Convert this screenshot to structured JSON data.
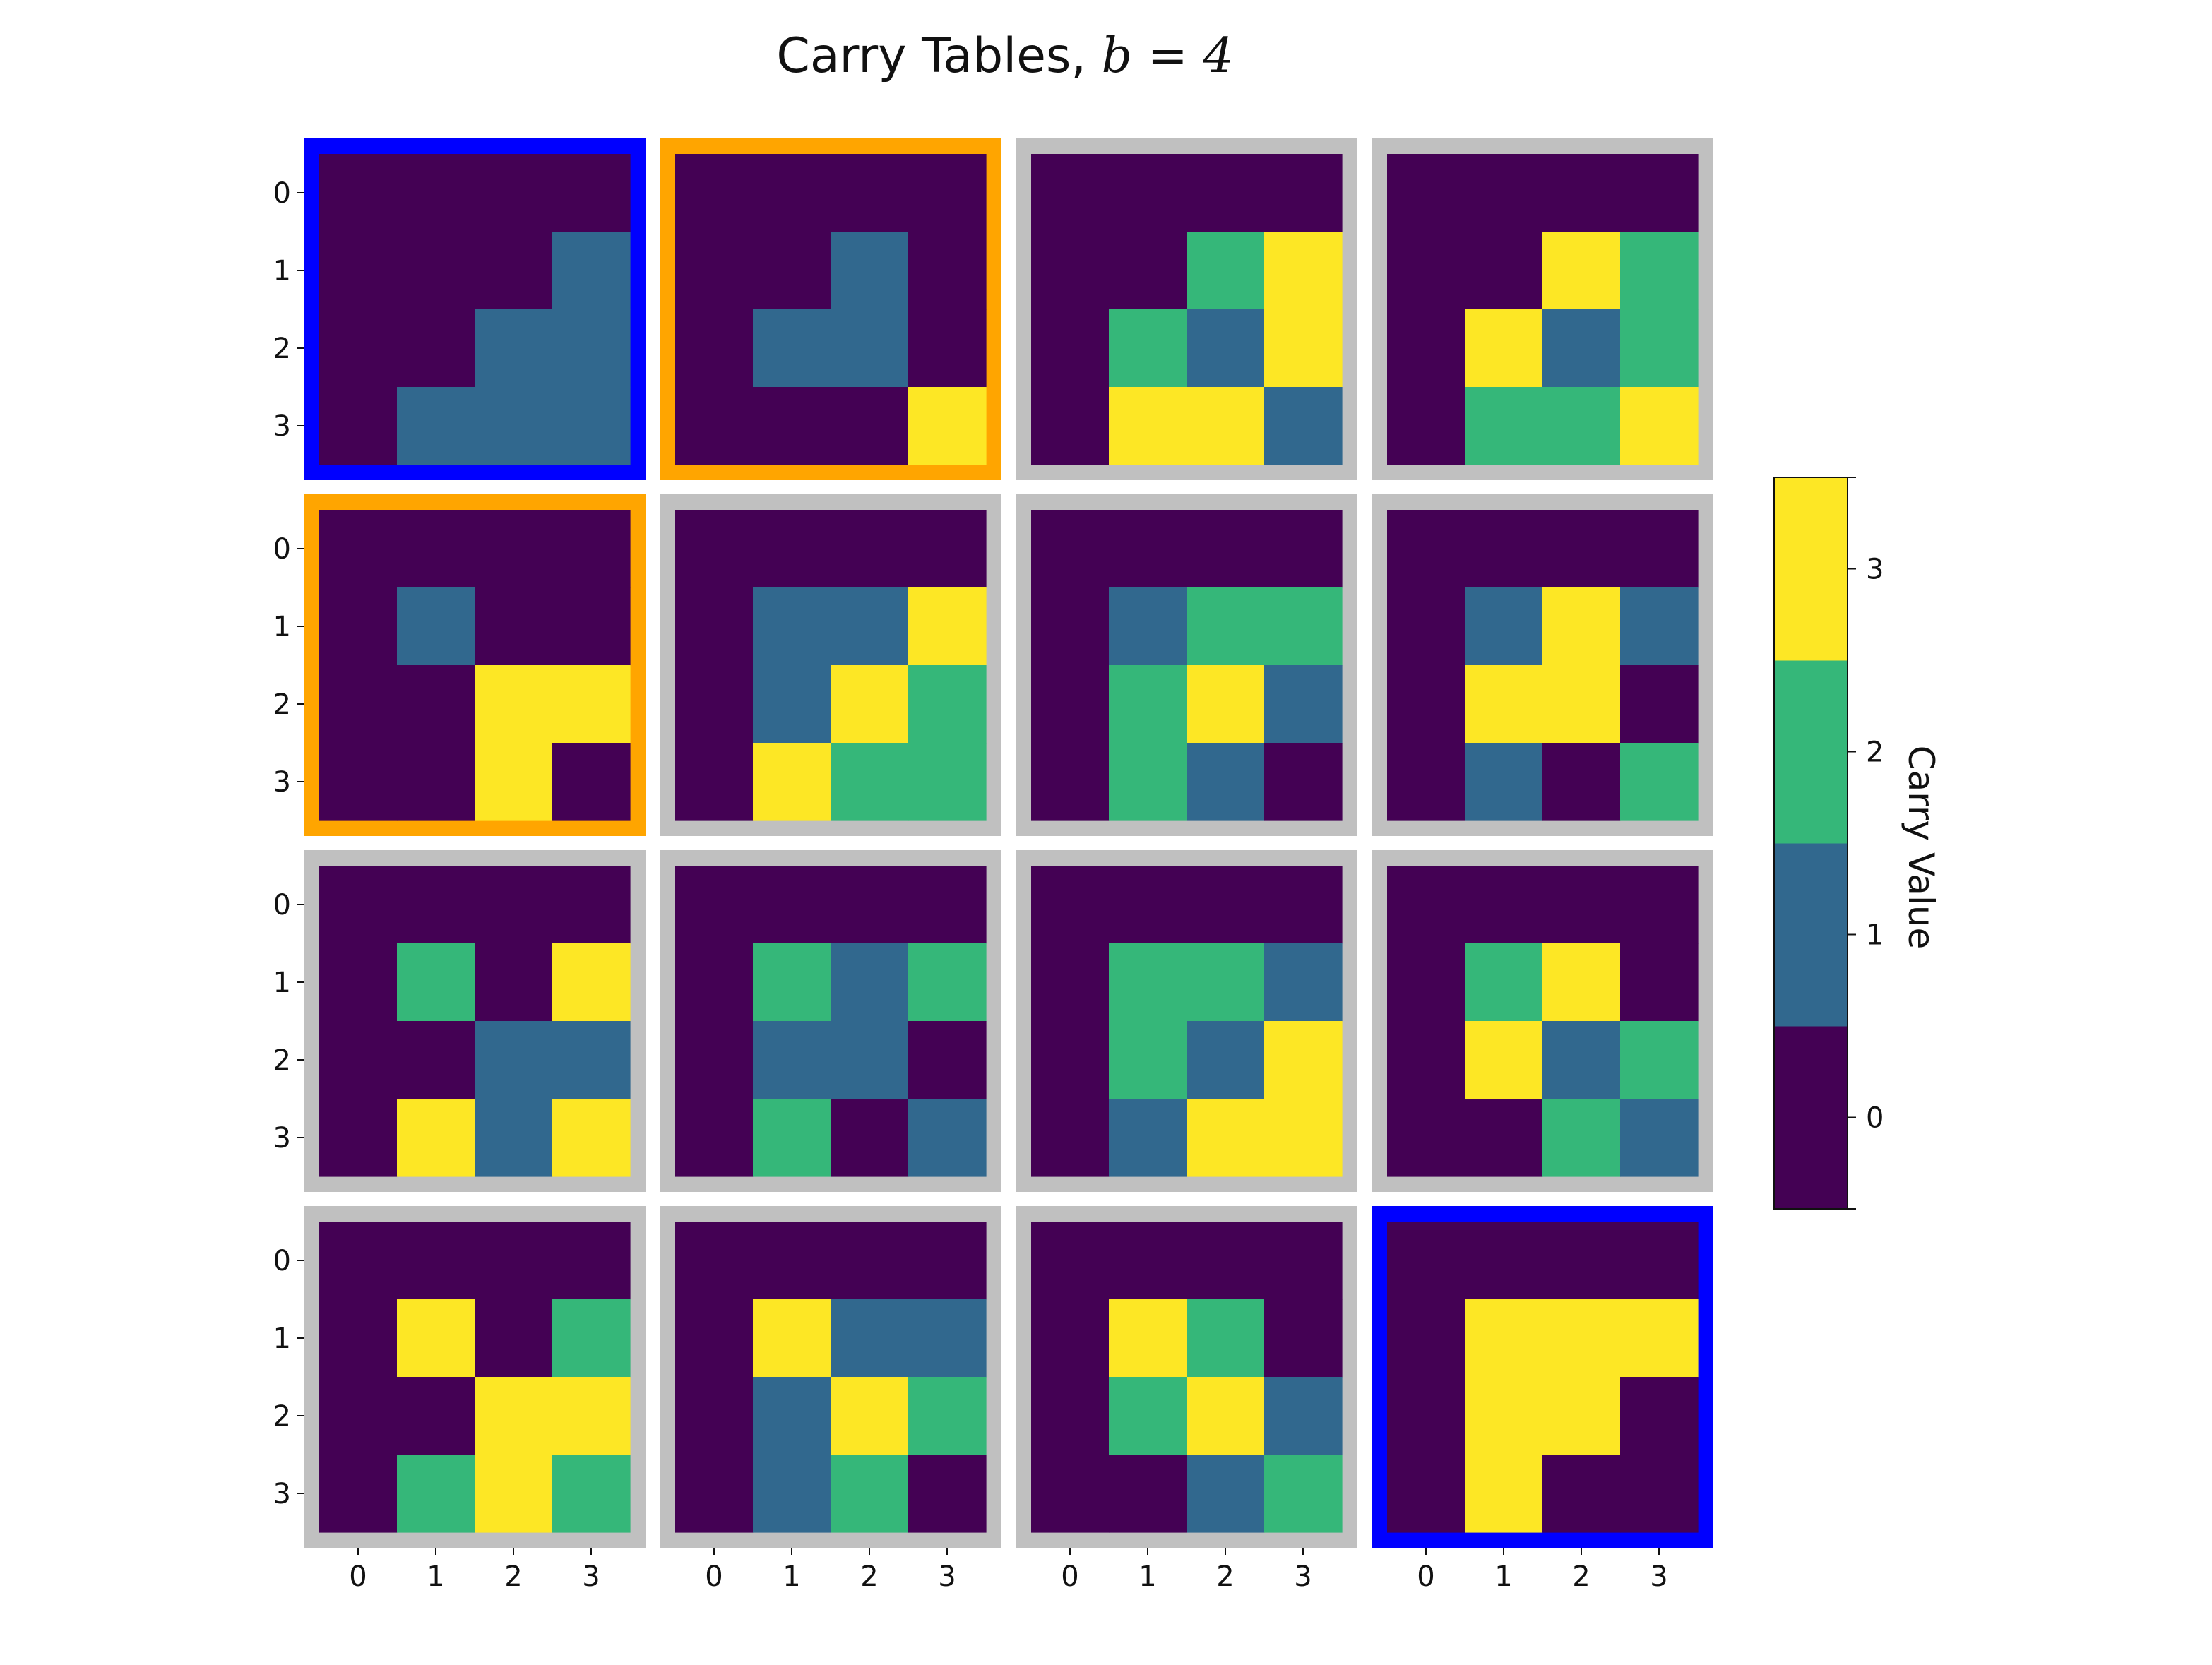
{
  "chart_data": {
    "type": "heatmap",
    "title_prefix": "Carry Tables, ",
    "title_math": "b = 4",
    "rows": 4,
    "cols": 4,
    "x_ticks": [
      "0",
      "1",
      "2",
      "3"
    ],
    "y_ticks": [
      "0",
      "1",
      "2",
      "3"
    ],
    "colorbar": {
      "label": "Carry Value",
      "ticks": [
        "0",
        "1",
        "2",
        "3"
      ],
      "colors": [
        "#440154",
        "#31688e",
        "#35b779",
        "#fde725"
      ]
    },
    "frame_colors": {
      "blue": "#0000ff",
      "orange": "#ffa500",
      "gray": "#c0c0c0"
    },
    "tables": [
      {
        "frame": "blue",
        "values": [
          [
            0,
            0,
            0,
            0
          ],
          [
            0,
            0,
            0,
            1
          ],
          [
            0,
            0,
            1,
            1
          ],
          [
            0,
            1,
            1,
            1
          ]
        ]
      },
      {
        "frame": "orange",
        "values": [
          [
            0,
            0,
            0,
            0
          ],
          [
            0,
            0,
            1,
            0
          ],
          [
            0,
            1,
            1,
            0
          ],
          [
            0,
            0,
            0,
            3
          ]
        ]
      },
      {
        "frame": "gray",
        "values": [
          [
            0,
            0,
            0,
            0
          ],
          [
            0,
            0,
            2,
            3
          ],
          [
            0,
            2,
            1,
            3
          ],
          [
            0,
            3,
            3,
            1
          ]
        ]
      },
      {
        "frame": "gray",
        "values": [
          [
            0,
            0,
            0,
            0
          ],
          [
            0,
            0,
            3,
            2
          ],
          [
            0,
            3,
            1,
            2
          ],
          [
            0,
            2,
            2,
            3
          ]
        ]
      },
      {
        "frame": "orange",
        "values": [
          [
            0,
            0,
            0,
            0
          ],
          [
            0,
            1,
            0,
            0
          ],
          [
            0,
            0,
            3,
            3
          ],
          [
            0,
            0,
            3,
            0
          ]
        ]
      },
      {
        "frame": "gray",
        "values": [
          [
            0,
            0,
            0,
            0
          ],
          [
            0,
            1,
            1,
            3
          ],
          [
            0,
            1,
            3,
            2
          ],
          [
            0,
            3,
            2,
            2
          ]
        ]
      },
      {
        "frame": "gray",
        "values": [
          [
            0,
            0,
            0,
            0
          ],
          [
            0,
            1,
            2,
            2
          ],
          [
            0,
            2,
            3,
            1
          ],
          [
            0,
            2,
            1,
            0
          ]
        ]
      },
      {
        "frame": "gray",
        "values": [
          [
            0,
            0,
            0,
            0
          ],
          [
            0,
            1,
            3,
            1
          ],
          [
            0,
            3,
            3,
            0
          ],
          [
            0,
            1,
            0,
            2
          ]
        ]
      },
      {
        "frame": "gray",
        "values": [
          [
            0,
            0,
            0,
            0
          ],
          [
            0,
            2,
            0,
            3
          ],
          [
            0,
            0,
            1,
            1
          ],
          [
            0,
            3,
            1,
            3
          ]
        ]
      },
      {
        "frame": "gray",
        "values": [
          [
            0,
            0,
            0,
            0
          ],
          [
            0,
            2,
            1,
            2
          ],
          [
            0,
            1,
            1,
            0
          ],
          [
            0,
            2,
            0,
            1
          ]
        ]
      },
      {
        "frame": "gray",
        "values": [
          [
            0,
            0,
            0,
            0
          ],
          [
            0,
            2,
            2,
            1
          ],
          [
            0,
            2,
            1,
            3
          ],
          [
            0,
            1,
            3,
            3
          ]
        ]
      },
      {
        "frame": "gray",
        "values": [
          [
            0,
            0,
            0,
            0
          ],
          [
            0,
            2,
            3,
            0
          ],
          [
            0,
            3,
            1,
            2
          ],
          [
            0,
            0,
            2,
            1
          ]
        ]
      },
      {
        "frame": "gray",
        "values": [
          [
            0,
            0,
            0,
            0
          ],
          [
            0,
            3,
            0,
            2
          ],
          [
            0,
            0,
            3,
            3
          ],
          [
            0,
            2,
            3,
            2
          ]
        ]
      },
      {
        "frame": "gray",
        "values": [
          [
            0,
            0,
            0,
            0
          ],
          [
            0,
            3,
            1,
            1
          ],
          [
            0,
            1,
            3,
            2
          ],
          [
            0,
            1,
            2,
            0
          ]
        ]
      },
      {
        "frame": "gray",
        "values": [
          [
            0,
            0,
            0,
            0
          ],
          [
            0,
            3,
            2,
            0
          ],
          [
            0,
            2,
            3,
            1
          ],
          [
            0,
            0,
            1,
            2
          ]
        ]
      },
      {
        "frame": "blue",
        "values": [
          [
            0,
            0,
            0,
            0
          ],
          [
            0,
            3,
            3,
            3
          ],
          [
            0,
            3,
            3,
            0
          ],
          [
            0,
            3,
            0,
            0
          ]
        ]
      }
    ]
  }
}
